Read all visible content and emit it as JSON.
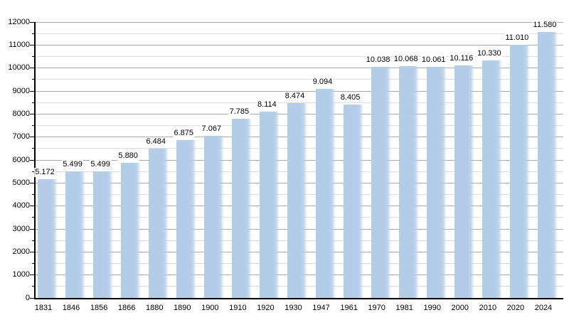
{
  "chart_data": {
    "type": "bar",
    "title": "",
    "xlabel": "",
    "ylabel": "",
    "categories": [
      "1831",
      "1846",
      "1856",
      "1866",
      "1880",
      "1890",
      "1900",
      "1910",
      "1920",
      "1930",
      "1947",
      "1961",
      "1970",
      "1981",
      "1990",
      "2000",
      "2010",
      "2020",
      "2024"
    ],
    "values": [
      5172,
      5499,
      5499,
      5880,
      6484,
      6875,
      7067,
      7785,
      8114,
      8474,
      9094,
      8405,
      10038,
      10068,
      10061,
      10116,
      10330,
      11010,
      11580
    ],
    "value_labels": [
      "5.172",
      "5.499",
      "5.499",
      "5.880",
      "6.484",
      "6.875",
      "7.067",
      "7.785",
      "8.114",
      "8.474",
      "9.094",
      "8.405",
      "10.038",
      "10.068",
      "10.061",
      "10.116",
      "10.330",
      "11.010",
      "11.580"
    ],
    "ylim": [
      0,
      12000
    ],
    "ytick_interval": 1000,
    "ytick_minor_interval": 500,
    "ytick_labels": [
      "0",
      "1000",
      "2000",
      "3000",
      "4000",
      "5000",
      "6000",
      "7000",
      "8000",
      "9000",
      "10000",
      "11000",
      "12000"
    ],
    "grid": true,
    "legend": false,
    "colors": {
      "bar": "#b3cde8",
      "bar_fade_mid": "rgba(179,205,232,0.85)",
      "bar_fade_end": "rgba(179,205,232,0)",
      "gridline_major": "#a9a9a9",
      "gridline_minor": "#dcdcdc",
      "axis": "#000000",
      "text": "#000000",
      "background": "#ffffff"
    }
  }
}
